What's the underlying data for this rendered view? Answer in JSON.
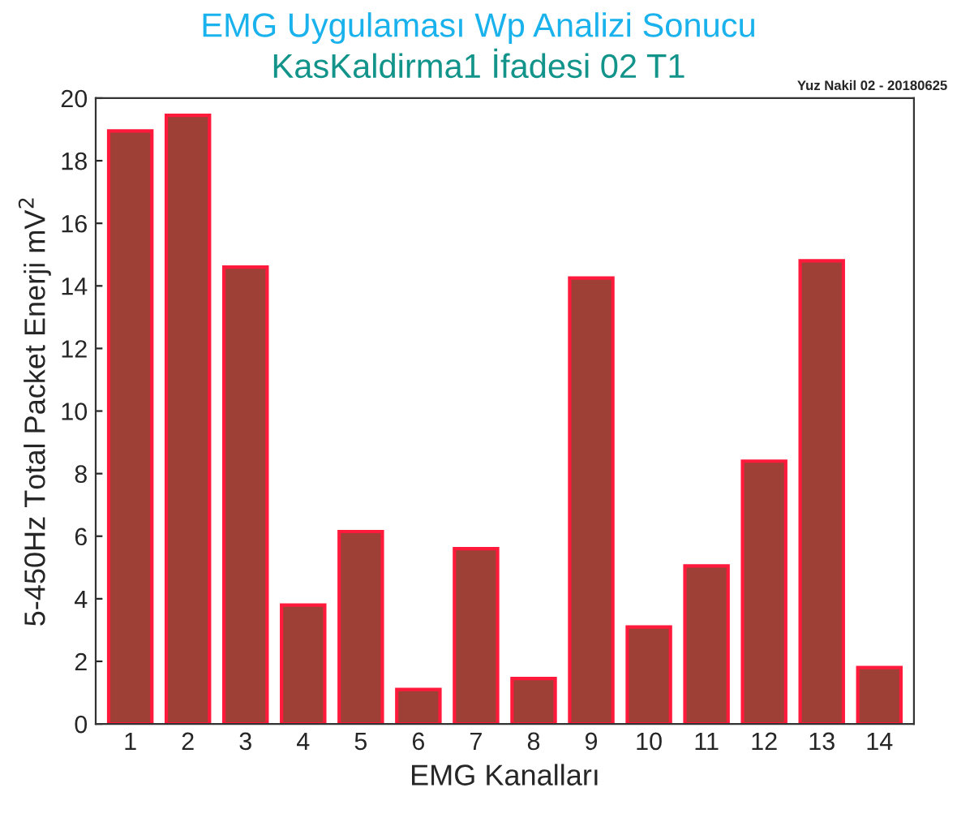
{
  "chart_data": {
    "type": "bar",
    "title": "EMG Uygulaması Wp Analizi Sonucu",
    "subtitle": "KasKaldirma1 İfadesi 02 T1",
    "xlabel": "EMG Kanalları",
    "ylabel": "5-450Hz Total Packet Enerji mV$^{2}$",
    "annotations": [
      "Yuz Nakil 02 - 20180625"
    ],
    "categories": [
      "1",
      "2",
      "3",
      "4",
      "5",
      "6",
      "7",
      "8",
      "9",
      "10",
      "11",
      "12",
      "13",
      "14"
    ],
    "series": [
      {
        "color": "#9e4036",
        "values": [
          18.95,
          19.45,
          14.6,
          3.8,
          6.15,
          1.1,
          5.6,
          1.45,
          14.25,
          3.1,
          5.05,
          8.4,
          14.8,
          1.8
        ]
      }
    ],
    "ylim": [
      0,
      20
    ],
    "yticks": [
      0,
      2,
      4,
      6,
      8,
      10,
      12,
      14,
      16,
      18,
      20
    ],
    "grid": false,
    "legend": false
  }
}
